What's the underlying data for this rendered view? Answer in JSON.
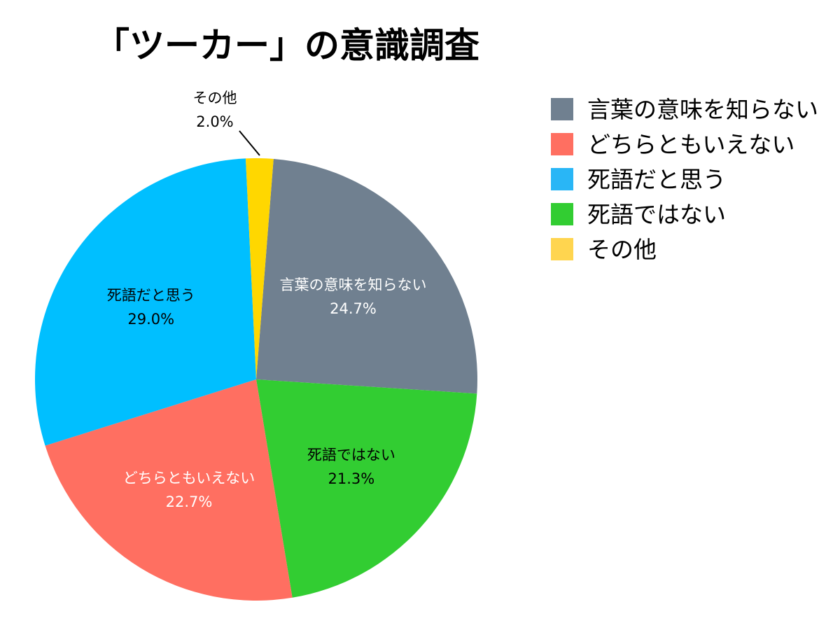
{
  "chart_data": {
    "type": "pie",
    "title": "「ツーカー」の意識調査",
    "legend_position": "right",
    "slices": [
      {
        "label": "言葉の意味を知らない",
        "value": 24.7,
        "value_label": "24.7%",
        "color": "#708090"
      },
      {
        "label": "死語ではない",
        "value": 21.3,
        "value_label": "21.3%",
        "color": "#32CD32"
      },
      {
        "label": "どちらともいえない",
        "value": 22.7,
        "value_label": "22.7%",
        "color": "#FF6F61"
      },
      {
        "label": "死語だと思う",
        "value": 29.0,
        "value_label": "29.0%",
        "color": "#00BFFF"
      },
      {
        "label": "その他",
        "value": 2.0,
        "value_label": "2.0%",
        "color": "#FFD700"
      }
    ],
    "legend": [
      {
        "label": "言葉の意味を知らない",
        "color": "#708090"
      },
      {
        "label": "どちらともいえない",
        "color": "#FF6F61"
      },
      {
        "label": "死語だと思う",
        "color": "#29B6F6"
      },
      {
        "label": "死語ではない",
        "color": "#32CD32"
      },
      {
        "label": "その他",
        "color": "#FFD54F"
      }
    ]
  }
}
